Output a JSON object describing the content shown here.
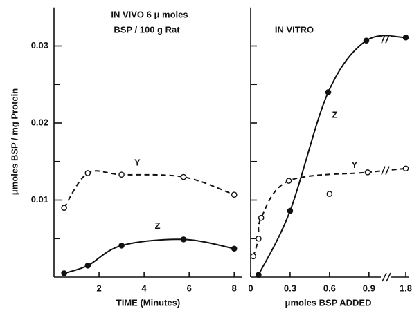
{
  "chart_data": [
    {
      "type": "line",
      "title_lines": [
        "IN VIVO 6 μ moles",
        "BSP / 100 g Rat"
      ],
      "xlabel": "TIME (Minutes)",
      "ylabel": "μmoles BSP / mg Protein",
      "xlim": [
        0,
        8.3
      ],
      "xticks": [
        2,
        4,
        6,
        8
      ],
      "ylim": [
        0,
        0.035
      ],
      "yticks": [
        0.01,
        0.02,
        0.03
      ],
      "yminorticks": [
        0.005,
        0.015,
        0.025
      ],
      "series": [
        {
          "name": "Y",
          "color": "#111111",
          "dash": true,
          "marker": "open",
          "x": [
            0.45,
            1.5,
            3,
            5.75,
            8
          ],
          "values": [
            0.009,
            0.0135,
            0.0133,
            0.013,
            0.0107
          ]
        },
        {
          "name": "Z",
          "color": "#111111",
          "dash": false,
          "marker": "filled",
          "x": [
            0.45,
            1.5,
            3,
            5.75,
            8
          ],
          "values": [
            0.0005,
            0.0015,
            0.0041,
            0.0049,
            0.0037
          ]
        }
      ],
      "labels": [
        {
          "text": "Y",
          "x": 3.7,
          "y": 0.0148
        },
        {
          "text": "Z",
          "x": 4.6,
          "y": 0.0066
        }
      ]
    },
    {
      "type": "line",
      "title": "IN VITRO",
      "xlabel": "μmoles BSP ADDED",
      "xlim": [
        0,
        1.8
      ],
      "xbreak": [
        0.98,
        1.7
      ],
      "xticks": [
        0,
        0.3,
        0.6,
        0.9,
        1.8
      ],
      "ylim": [
        0,
        0.035
      ],
      "yminorticks": [
        0.005,
        0.01,
        0.015,
        0.02,
        0.025,
        0.03
      ],
      "series": [
        {
          "name": "Y",
          "color": "#111111",
          "dash": true,
          "marker": "open",
          "x": [
            0.02,
            0.06,
            0.08,
            0.29,
            0.89,
            1.8
          ],
          "values": [
            0.0027,
            0.005,
            0.0077,
            0.0125,
            0.0136,
            0.0141
          ],
          "outlier": {
            "x": 0.6,
            "value": 0.0108
          }
        },
        {
          "name": "Z",
          "color": "#111111",
          "dash": false,
          "marker": "filled",
          "x": [
            0.06,
            0.3,
            0.59,
            0.88,
            1.8
          ],
          "values": [
            0.0003,
            0.0086,
            0.024,
            0.0307,
            0.0311
          ]
        }
      ],
      "labels": [
        {
          "text": "Y",
          "x": 0.79,
          "y": 0.0145
        },
        {
          "text": "Z",
          "x": 0.64,
          "y": 0.021
        }
      ]
    }
  ]
}
